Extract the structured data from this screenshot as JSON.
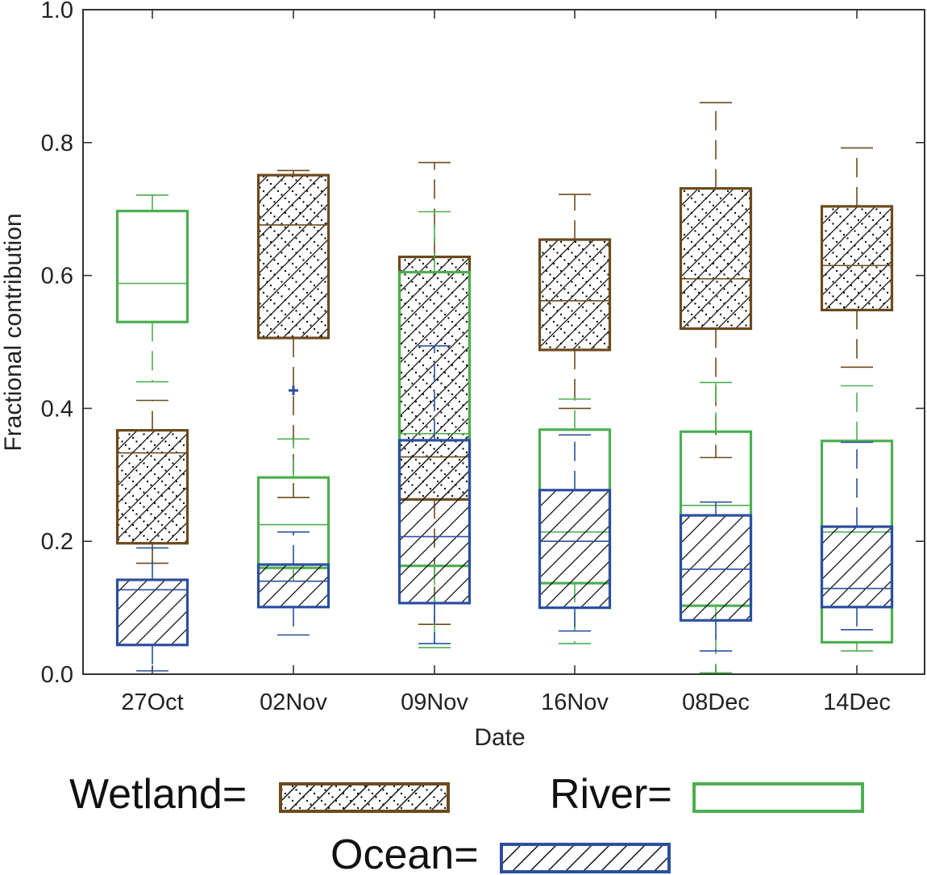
{
  "chart_data": {
    "type": "boxplot",
    "xlabel": "Date",
    "ylabel": "Fractional contribution",
    "ylim": [
      0,
      1
    ],
    "yticks": [
      "0.0",
      "0.2",
      "0.4",
      "0.6",
      "0.8",
      "1.0"
    ],
    "categories": [
      "27Oct",
      "02Nov",
      "09Nov",
      "16Nov",
      "08Dec",
      "14Dec"
    ],
    "series": [
      {
        "name": "Wetland",
        "legend_label": "Wetland=",
        "color": "#6b4a1e",
        "pattern": "dots-and-diagonal",
        "boxes": [
          {
            "category": "27Oct",
            "whisker_low": 0.167,
            "q1": 0.197,
            "median": 0.333,
            "q3": 0.367,
            "whisker_high": 0.412
          },
          {
            "category": "02Nov",
            "whisker_low": 0.266,
            "q1": 0.506,
            "median": 0.676,
            "q3": 0.751,
            "whisker_high": 0.758
          },
          {
            "category": "09Nov",
            "whisker_low": 0.075,
            "q1": 0.263,
            "median": 0.327,
            "q3": 0.628,
            "whisker_high": 0.77
          },
          {
            "category": "16Nov",
            "whisker_low": 0.4,
            "q1": 0.488,
            "median": 0.562,
            "q3": 0.654,
            "whisker_high": 0.722
          },
          {
            "category": "08Dec",
            "whisker_low": 0.326,
            "q1": 0.52,
            "median": 0.595,
            "q3": 0.731,
            "whisker_high": 0.86
          },
          {
            "category": "14Dec",
            "whisker_low": 0.462,
            "q1": 0.548,
            "median": 0.615,
            "q3": 0.704,
            "whisker_high": 0.792
          }
        ]
      },
      {
        "name": "River",
        "legend_label": "River=",
        "color": "#4caf50",
        "pattern": "none",
        "boxes": [
          {
            "category": "27Oct",
            "whisker_low": 0.44,
            "q1": 0.53,
            "median": 0.588,
            "q3": 0.697,
            "whisker_high": 0.721
          },
          {
            "category": "02Nov",
            "whisker_low": 0.14,
            "q1": 0.16,
            "median": 0.225,
            "q3": 0.296,
            "whisker_high": 0.354
          },
          {
            "category": "09Nov",
            "whisker_low": 0.04,
            "q1": 0.163,
            "median": 0.362,
            "q3": 0.605,
            "whisker_high": 0.696
          },
          {
            "category": "16Nov",
            "whisker_low": 0.046,
            "q1": 0.137,
            "median": 0.214,
            "q3": 0.368,
            "whisker_high": 0.414
          },
          {
            "category": "08Dec",
            "whisker_low": 0.002,
            "q1": 0.103,
            "median": 0.254,
            "q3": 0.365,
            "whisker_high": 0.439
          },
          {
            "category": "14Dec",
            "whisker_low": 0.035,
            "q1": 0.048,
            "median": 0.214,
            "q3": 0.351,
            "whisker_high": 0.434
          }
        ]
      },
      {
        "name": "Ocean",
        "legend_label": "Ocean=",
        "color": "#2b4fa0",
        "pattern": "diagonal",
        "boxes": [
          {
            "category": "27Oct",
            "whisker_low": 0.005,
            "q1": 0.044,
            "median": 0.127,
            "q3": 0.142,
            "whisker_high": 0.19
          },
          {
            "category": "02Nov",
            "whisker_low": 0.059,
            "q1": 0.101,
            "median": 0.14,
            "q3": 0.165,
            "whisker_high": 0.214,
            "outliers": [
              0.427
            ]
          },
          {
            "category": "09Nov",
            "whisker_low": 0.046,
            "q1": 0.107,
            "median": 0.207,
            "q3": 0.352,
            "whisker_high": 0.494
          },
          {
            "category": "16Nov",
            "whisker_low": 0.065,
            "q1": 0.1,
            "median": 0.2,
            "q3": 0.277,
            "whisker_high": 0.36
          },
          {
            "category": "08Dec",
            "whisker_low": 0.035,
            "q1": 0.081,
            "median": 0.158,
            "q3": 0.239,
            "whisker_high": 0.259
          },
          {
            "category": "14Dec",
            "whisker_low": 0.067,
            "q1": 0.101,
            "median": 0.129,
            "q3": 0.222,
            "whisker_high": 0.349
          }
        ]
      }
    ],
    "legend_position": "bottom"
  }
}
